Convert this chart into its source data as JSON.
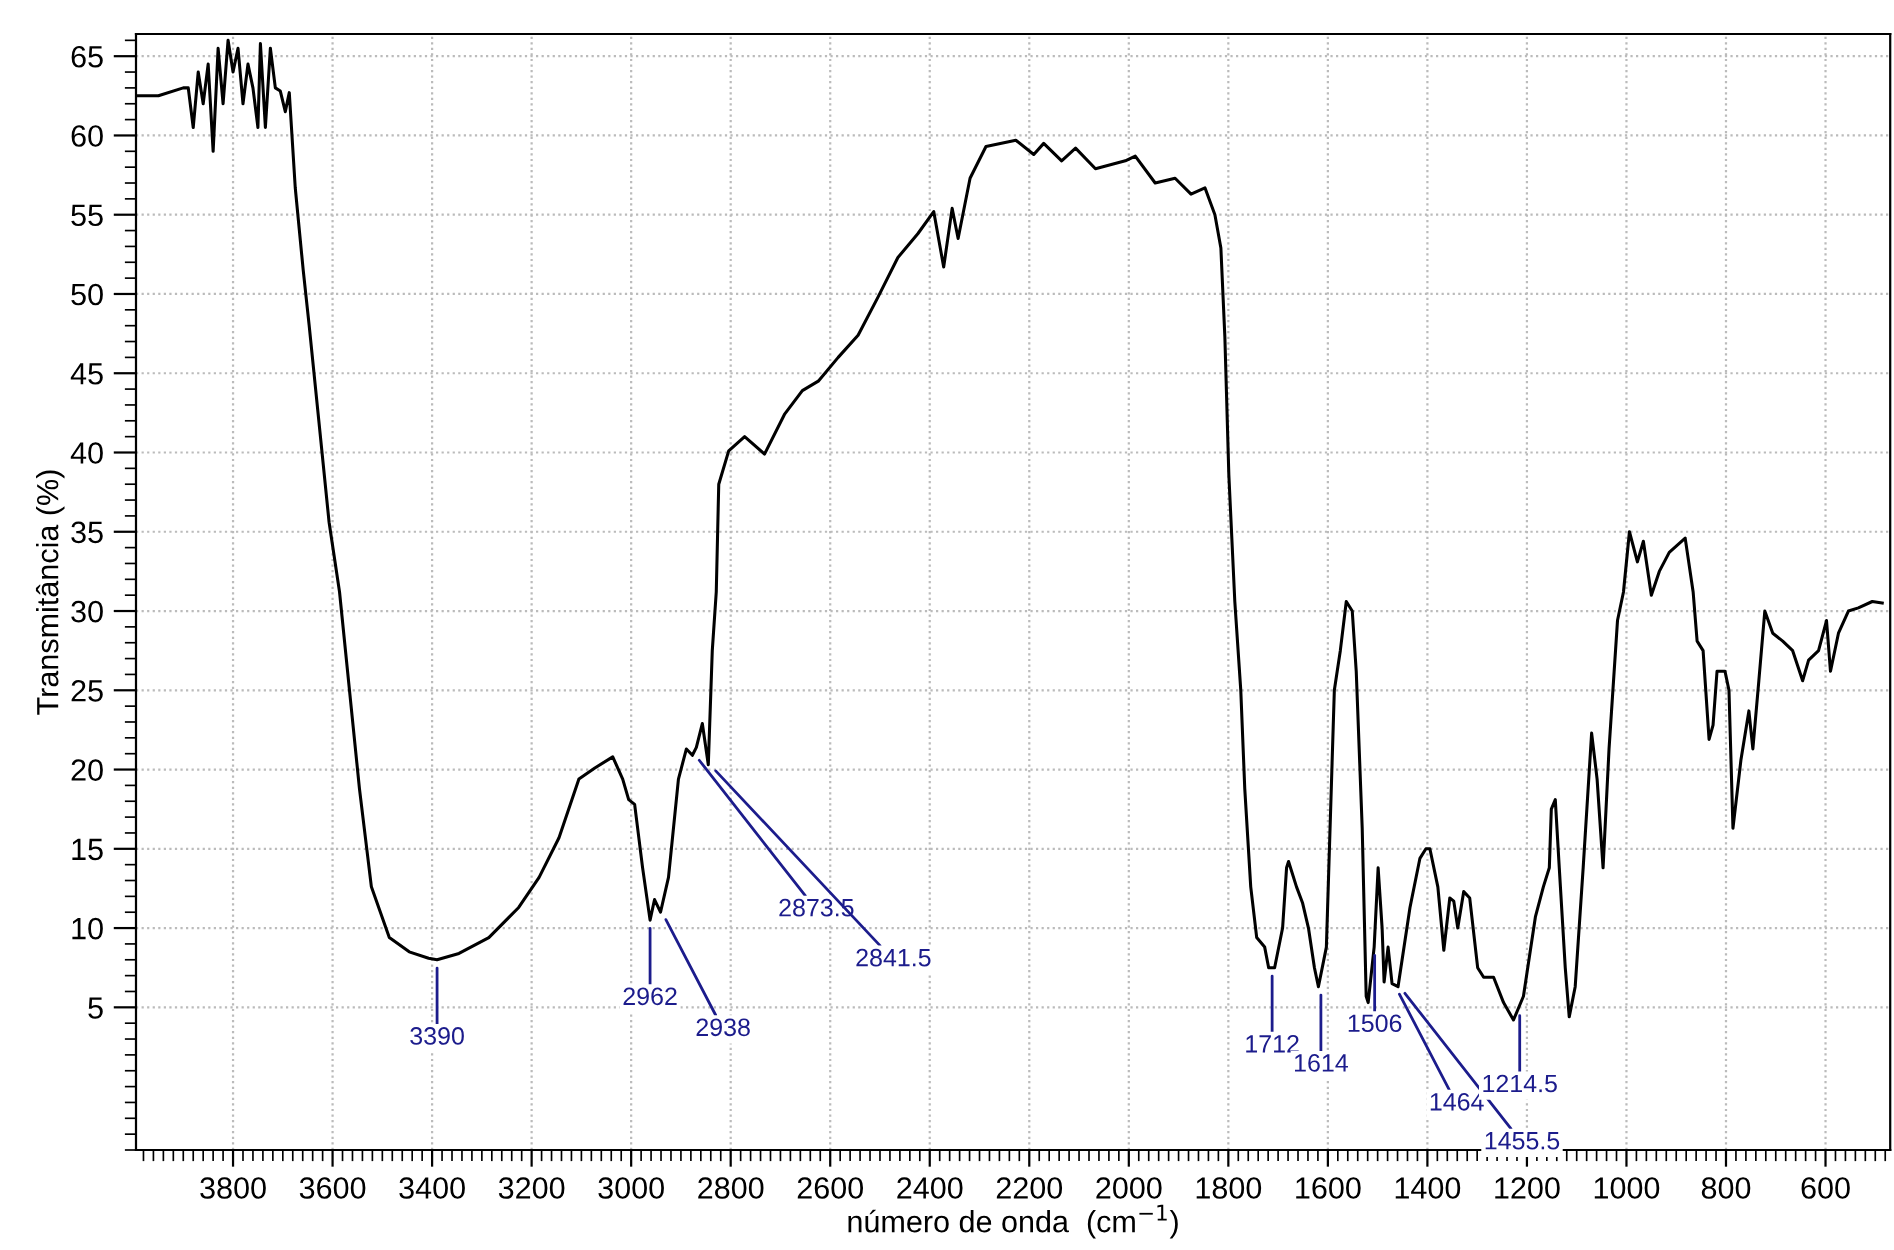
{
  "chart_data": {
    "type": "line",
    "xlabel": "número de onda  (cm$^{−1}$)",
    "ylabel": "Transmitância (%)",
    "color": "#000000",
    "x": [
      3995,
      3950,
      3900,
      3890,
      3880,
      3870,
      3860,
      3850,
      3840,
      3830,
      3820,
      3810,
      3800,
      3790,
      3780,
      3770,
      3760,
      3750,
      3745,
      3735,
      3725,
      3715,
      3705,
      3695,
      3687,
      3680,
      3675,
      3659,
      3647,
      3627,
      3607,
      3586,
      3566,
      3546,
      3522,
      3486,
      3446,
      3407,
      3390,
      3346,
      3286,
      3226,
      3185,
      3145,
      3105,
      3073,
      3037,
      3017,
      3005,
      2993,
      2977,
      2962,
      2953,
      2941,
      2925,
      2905,
      2889,
      2877,
      2869,
      2857,
      2845,
      2837,
      2829,
      2824,
      2804,
      2772,
      2732,
      2692,
      2656,
      2624,
      2584,
      2544,
      2504,
      2464,
      2424,
      2392,
      2372,
      2355,
      2343,
      2319,
      2287,
      2227,
      2191,
      2171,
      2135,
      2107,
      2067,
      2007,
      1987,
      1947,
      1907,
      1875,
      1847,
      1827,
      1815,
      1807,
      1799,
      1787,
      1775,
      1767,
      1755,
      1743,
      1727,
      1719,
      1707,
      1691,
      1683,
      1679,
      1663,
      1651,
      1639,
      1627,
      1619,
      1603,
      1587,
      1575,
      1563,
      1551,
      1543,
      1531,
      1523,
      1519,
      1507,
      1499,
      1491,
      1487,
      1479,
      1471,
      1459,
      1435,
      1415,
      1403,
      1395,
      1379,
      1367,
      1355,
      1347,
      1339,
      1327,
      1315,
      1299,
      1287,
      1267,
      1247,
      1227,
      1207,
      1183,
      1167,
      1155,
      1151,
      1143,
      1135,
      1123,
      1115,
      1103,
      1087,
      1070,
      1059,
      1047,
      1035,
      1018,
      1006,
      994,
      978,
      966,
      950,
      934,
      914,
      882,
      866,
      858,
      846,
      834,
      826,
      818,
      802,
      794,
      786,
      770,
      754,
      746,
      734,
      722,
      706,
      686,
      666,
      646,
      634,
      614,
      598,
      590,
      574,
      554,
      534,
      506,
      486
    ],
    "values": [
      62.5,
      62.5,
      63,
      63,
      60.5,
      64,
      62,
      64.5,
      59,
      65.5,
      62,
      66,
      64,
      65.5,
      62,
      64.5,
      63,
      60.5,
      65.8,
      60.5,
      65.5,
      63,
      62.8,
      61.5,
      62.7,
      59.2,
      56.7,
      51.5,
      48,
      41.8,
      35.6,
      31.2,
      25,
      18.8,
      12.6,
      9.4,
      8.5,
      8.1,
      8,
      8.4,
      9.4,
      11.3,
      13.2,
      15.7,
      19.4,
      20.1,
      20.8,
      19.4,
      18.1,
      17.8,
      13.8,
      10.5,
      11.8,
      11,
      13.2,
      19.4,
      21.3,
      20.9,
      21.4,
      22.9,
      20.3,
      27.5,
      31.2,
      38,
      40.1,
      41,
      39.9,
      42.4,
      43.9,
      44.5,
      46,
      47.4,
      49.8,
      52.3,
      53.8,
      55.2,
      51.7,
      55.4,
      53.5,
      57.3,
      59.3,
      59.7,
      58.8,
      59.5,
      58.4,
      59.2,
      57.9,
      58.4,
      58.7,
      57,
      57.3,
      56.3,
      56.7,
      55,
      52.9,
      47.3,
      38.6,
      30.6,
      25,
      18.8,
      12.6,
      9.4,
      8.8,
      7.5,
      7.5,
      10,
      13.8,
      14.2,
      12.6,
      11.6,
      10,
      7.5,
      6.3,
      8.8,
      25,
      27.5,
      30.6,
      30,
      26.2,
      16.3,
      5.7,
      5.3,
      8.8,
      13.8,
      10,
      6.6,
      8.8,
      6.5,
      6.3,
      11.3,
      14.4,
      15,
      15,
      12.6,
      8.6,
      11.9,
      11.7,
      10,
      12.3,
      11.9,
      7.5,
      6.9,
      6.9,
      5.3,
      4.2,
      5.7,
      10.7,
      12.6,
      13.8,
      17.5,
      18.1,
      13.8,
      7.5,
      4.4,
      6.3,
      13.8,
      22.3,
      19.4,
      13.8,
      21.3,
      29.4,
      31.2,
      35,
      33.1,
      34.4,
      31,
      32.5,
      33.7,
      34.6,
      31.2,
      28.1,
      27.5,
      21.9,
      22.8,
      26.2,
      26.2,
      25,
      16.3,
      20.6,
      23.7,
      21.3,
      25.6,
      30,
      28.6,
      28.1,
      27.5,
      25.6,
      26.9,
      27.5,
      29.4,
      26.2,
      28.6,
      30,
      30.2,
      30.6,
      30.5
    ],
    "xlim": [
      3995,
      470
    ],
    "ylim": [
      -4,
      66.4
    ],
    "xticks": [
      3800,
      3600,
      3400,
      3200,
      3000,
      2800,
      2600,
      2400,
      2200,
      2000,
      1800,
      1600,
      1400,
      1200,
      1000,
      800,
      600
    ],
    "yticks": [
      5,
      10,
      15,
      20,
      25,
      30,
      35,
      40,
      45,
      50,
      55,
      60,
      65
    ],
    "grid": true,
    "annotations": [
      {
        "text": "3390",
        "x": 3390,
        "y": 8
      },
      {
        "text": "2962",
        "x": 2962,
        "y": 10.5
      },
      {
        "text": "2938",
        "x": 2938,
        "y": 11
      },
      {
        "text": "2873.5",
        "x": 2873.5,
        "y": 21
      },
      {
        "text": "2841.5",
        "x": 2841.5,
        "y": 20.3
      },
      {
        "text": "1712",
        "x": 1712,
        "y": 7.5
      },
      {
        "text": "1614",
        "x": 1614,
        "y": 6.3
      },
      {
        "text": "1506",
        "x": 1506,
        "y": 8.8
      },
      {
        "text": "1464",
        "x": 1464,
        "y": 6.3
      },
      {
        "text": "1455.5",
        "x": 1455.5,
        "y": 6.3
      },
      {
        "text": "1214.5",
        "x": 1214.5,
        "y": 5
      }
    ]
  }
}
